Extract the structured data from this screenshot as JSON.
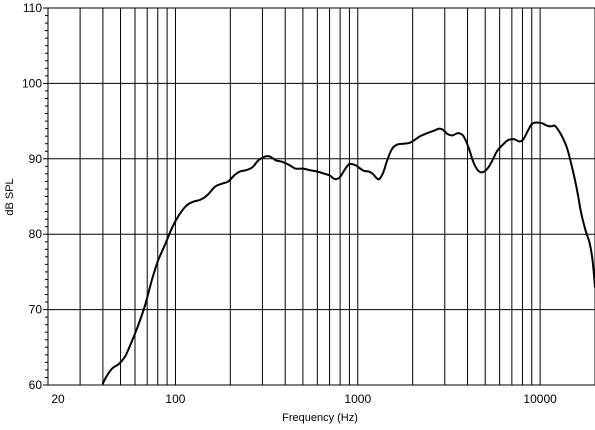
{
  "chart_data": {
    "type": "line",
    "title": "",
    "xlabel": "Frequency (Hz)",
    "ylabel": "dB SPL",
    "x_scale": "log",
    "xlim": [
      20,
      20000
    ],
    "ylim": [
      60,
      110
    ],
    "grid": true,
    "x_tick_labels": [
      {
        "value": 20,
        "label": "20"
      },
      {
        "value": 100,
        "label": "100"
      },
      {
        "value": 1000,
        "label": "1000"
      },
      {
        "value": 10000,
        "label": "10000"
      }
    ],
    "y_tick_labels": [
      {
        "value": 60,
        "label": "60"
      },
      {
        "value": 70,
        "label": "70"
      },
      {
        "value": 80,
        "label": "80"
      },
      {
        "value": 90,
        "label": "90"
      },
      {
        "value": 100,
        "label": "100"
      },
      {
        "value": 110,
        "label": "110"
      }
    ],
    "line_color": "#000000",
    "series": [
      {
        "points": [
          [
            40,
            60.2
          ],
          [
            42,
            61.2
          ],
          [
            45,
            62.2
          ],
          [
            49,
            62.8
          ],
          [
            53,
            63.8
          ],
          [
            57,
            65.5
          ],
          [
            62,
            67.7
          ],
          [
            68,
            70.5
          ],
          [
            74,
            73.8
          ],
          [
            80,
            76.4
          ],
          [
            88,
            78.7
          ],
          [
            96,
            80.9
          ],
          [
            105,
            82.6
          ],
          [
            115,
            83.8
          ],
          [
            125,
            84.3
          ],
          [
            138,
            84.6
          ],
          [
            150,
            85.2
          ],
          [
            165,
            86.3
          ],
          [
            180,
            86.7
          ],
          [
            195,
            87.0
          ],
          [
            210,
            87.8
          ],
          [
            225,
            88.3
          ],
          [
            245,
            88.5
          ],
          [
            265,
            88.9
          ],
          [
            285,
            89.8
          ],
          [
            310,
            90.3
          ],
          [
            330,
            90.3
          ],
          [
            355,
            89.8
          ],
          [
            385,
            89.6
          ],
          [
            420,
            89.2
          ],
          [
            455,
            88.7
          ],
          [
            500,
            88.7
          ],
          [
            545,
            88.5
          ],
          [
            600,
            88.3
          ],
          [
            660,
            88.0
          ],
          [
            700,
            87.8
          ],
          [
            750,
            87.3
          ],
          [
            800,
            87.6
          ],
          [
            850,
            88.6
          ],
          [
            900,
            89.3
          ],
          [
            960,
            89.2
          ],
          [
            1020,
            88.8
          ],
          [
            1080,
            88.4
          ],
          [
            1150,
            88.3
          ],
          [
            1210,
            88.0
          ],
          [
            1260,
            87.5
          ],
          [
            1310,
            87.3
          ],
          [
            1380,
            88.2
          ],
          [
            1450,
            89.8
          ],
          [
            1540,
            91.3
          ],
          [
            1650,
            91.9
          ],
          [
            1780,
            92.0
          ],
          [
            1920,
            92.1
          ],
          [
            2050,
            92.5
          ],
          [
            2200,
            93.0
          ],
          [
            2400,
            93.4
          ],
          [
            2600,
            93.7
          ],
          [
            2800,
            94.0
          ],
          [
            2950,
            93.8
          ],
          [
            3100,
            93.3
          ],
          [
            3300,
            93.1
          ],
          [
            3550,
            93.4
          ],
          [
            3800,
            93.0
          ],
          [
            4050,
            91.5
          ],
          [
            4300,
            89.6
          ],
          [
            4550,
            88.5
          ],
          [
            4800,
            88.2
          ],
          [
            5100,
            88.6
          ],
          [
            5400,
            89.5
          ],
          [
            5800,
            91.0
          ],
          [
            6200,
            91.8
          ],
          [
            6700,
            92.5
          ],
          [
            7200,
            92.6
          ],
          [
            7700,
            92.3
          ],
          [
            8100,
            92.6
          ],
          [
            8600,
            93.8
          ],
          [
            9000,
            94.6
          ],
          [
            9400,
            94.8
          ],
          [
            9800,
            94.8
          ],
          [
            10300,
            94.7
          ],
          [
            10900,
            94.4
          ],
          [
            11500,
            94.3
          ],
          [
            12000,
            94.4
          ],
          [
            12600,
            93.8
          ],
          [
            13300,
            92.8
          ],
          [
            14100,
            91.3
          ],
          [
            15000,
            88.8
          ],
          [
            15900,
            86.0
          ],
          [
            16800,
            82.8
          ],
          [
            17800,
            80.4
          ],
          [
            18700,
            78.8
          ],
          [
            19400,
            76.5
          ],
          [
            20000,
            73.0
          ]
        ]
      }
    ]
  }
}
